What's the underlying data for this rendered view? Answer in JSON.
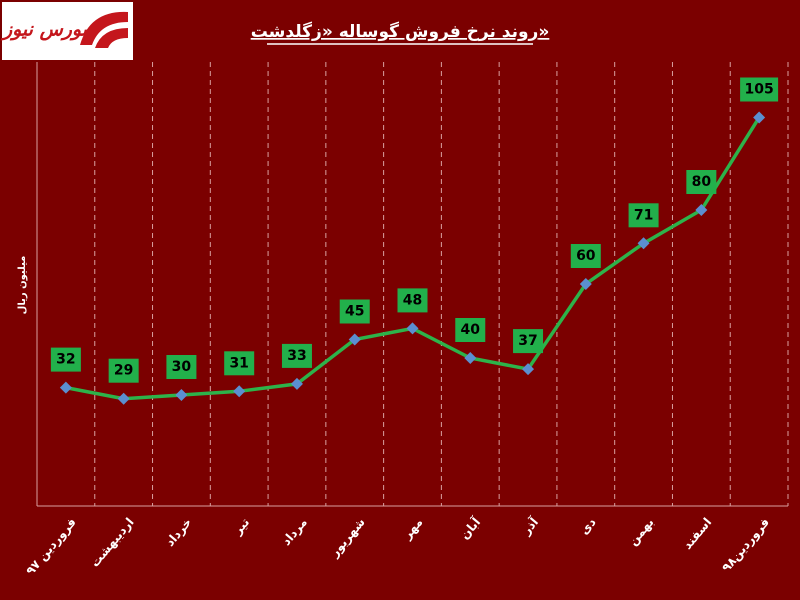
{
  "logo": "بورس نیوز",
  "chart_data": {
    "type": "line",
    "title": "روند نرخ فروش گوساله «زگلدشت»",
    "y_label": "میلیون ریال",
    "categories": [
      "فروردین ۹۷",
      "اردیبهشت",
      "خرداد",
      "تیر",
      "مرداد",
      "شهریور",
      "مهر",
      "آبان",
      "آذر",
      "دی",
      "بهمن",
      "اسفند",
      "فروردین۹۸"
    ],
    "values": [
      32,
      29,
      30,
      31,
      33,
      45,
      48,
      40,
      37,
      60,
      71,
      80,
      105
    ],
    "color": "#2db34a",
    "marker_color": "#5b8fd0",
    "label_color": "#22b04b",
    "ylim": [
      0,
      120
    ]
  }
}
